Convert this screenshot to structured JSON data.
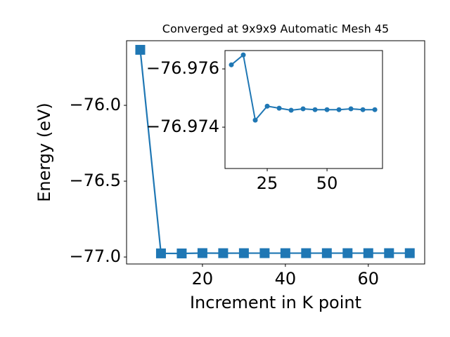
{
  "chart_data": [
    {
      "type": "line",
      "title": "Converged at 9x9x9 Automatic Mesh 45",
      "x_label": "Increment in K point",
      "y_label": "Energy (eV)",
      "x": [
        5,
        10,
        15,
        20,
        25,
        30,
        35,
        40,
        45,
        50,
        55,
        60,
        65,
        70
      ],
      "series": [
        {
          "color": "#1f77b4",
          "marker": "square",
          "values": [
            -75.634,
            -76.97614,
            -76.97648,
            -76.97424,
            -76.97472,
            -76.97465,
            -76.97458,
            -76.97463,
            -76.9746,
            -76.9746,
            -76.9746,
            -76.97463,
            -76.9746,
            -76.9746
          ]
        }
      ],
      "xlim": [
        1.7,
        73.6
      ],
      "ylim": [
        -77.046,
        -75.574
      ],
      "xticks": [
        20,
        40,
        60
      ],
      "yticks": [
        {
          "value": -77.0,
          "label": "−77.0"
        },
        {
          "value": -76.5,
          "label": "−76.5"
        },
        {
          "value": -76.0,
          "label": "−76.0"
        }
      ]
    },
    {
      "type": "line",
      "x": [
        10,
        15,
        20,
        25,
        30,
        35,
        40,
        45,
        50,
        55,
        60,
        65,
        70
      ],
      "series": [
        {
          "color": "#1f77b4",
          "marker": "circle",
          "values": [
            -76.97614,
            -76.97648,
            -76.97424,
            -76.97472,
            -76.97465,
            -76.97458,
            -76.97463,
            -76.9746,
            -76.9746,
            -76.9746,
            -76.97463,
            -76.9746,
            -76.9746
          ]
        }
      ],
      "xlim": [
        7.35,
        73.2
      ],
      "ylim": [
        -76.97258,
        -76.97663
      ],
      "xticks": [
        25,
        50
      ],
      "yticks": [
        {
          "value": -76.976,
          "label": "−76.976"
        },
        {
          "value": -76.974,
          "label": "−76.974"
        }
      ]
    }
  ]
}
